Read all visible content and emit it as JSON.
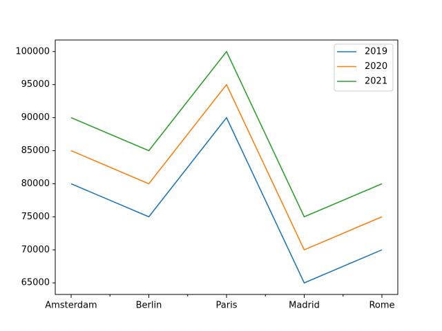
{
  "chart_data": {
    "type": "line",
    "title": "",
    "xlabel": "",
    "ylabel": "",
    "categories": [
      "Amsterdam",
      "Berlin",
      "Paris",
      "Madrid",
      "Rome"
    ],
    "series": [
      {
        "name": "2019",
        "color": "#1f77b4",
        "values": [
          80000,
          75000,
          90000,
          65000,
          70000
        ]
      },
      {
        "name": "2020",
        "color": "#ff7f0e",
        "values": [
          85000,
          80000,
          95000,
          70000,
          75000
        ]
      },
      {
        "name": "2021",
        "color": "#2ca02c",
        "values": [
          90000,
          85000,
          100000,
          75000,
          80000
        ]
      }
    ],
    "yticks": [
      65000,
      70000,
      75000,
      80000,
      85000,
      90000,
      95000,
      100000
    ],
    "ylim": [
      63250,
      101750
    ],
    "grid": false,
    "legend_position": "top-right"
  }
}
